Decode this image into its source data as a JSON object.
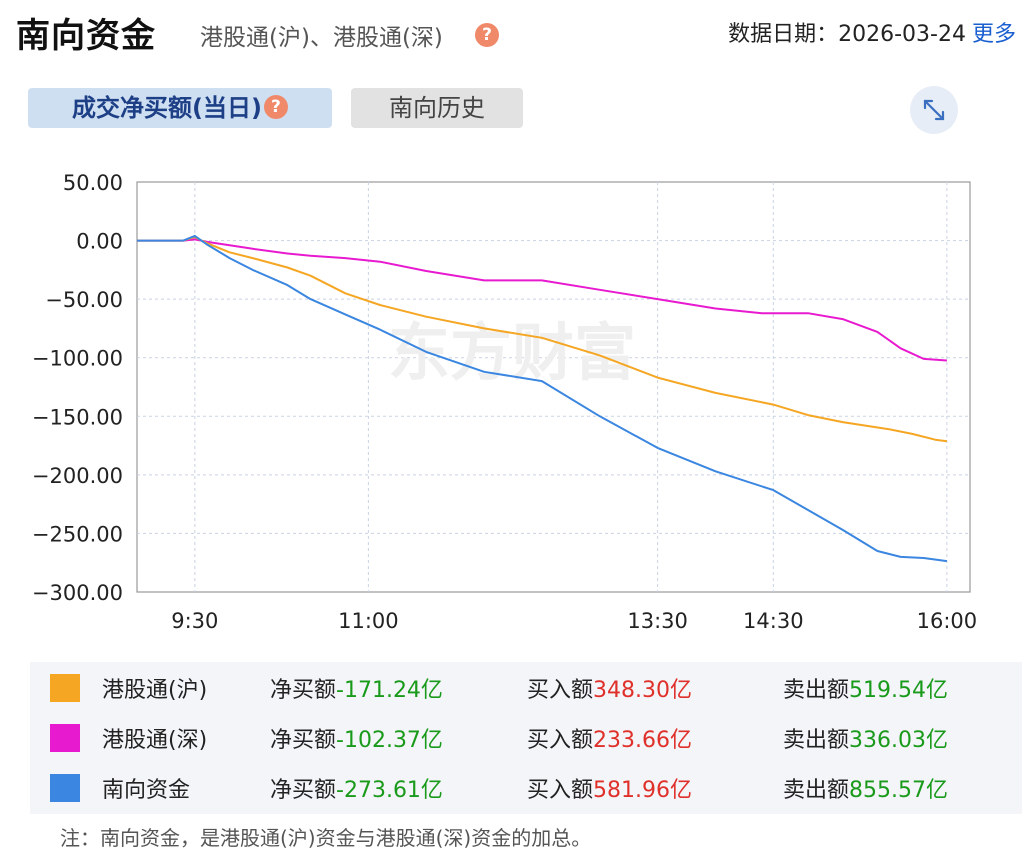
{
  "header": {
    "title": "南向资金",
    "subtitle": "港股通(沪)、港股通(深)",
    "help_glyph": "?",
    "date_label": "数据日期：",
    "date_value": "2026-03-24",
    "more_label": "更多"
  },
  "tabs": {
    "active": "成交净买额(当日)",
    "inactive": "南向历史"
  },
  "watermark": "东方财富",
  "legend": [
    {
      "name": "港股通(沪)",
      "color": "#f5a623",
      "net_label": "净买额",
      "net": "-171.24亿",
      "buy_label": "买入额",
      "buy": "348.30亿",
      "sell_label": "卖出额",
      "sell": "519.54亿"
    },
    {
      "name": "港股通(深)",
      "color": "#e81ad0",
      "net_label": "净买额",
      "net": "-102.37亿",
      "buy_label": "买入额",
      "buy": "233.66亿",
      "sell_label": "卖出额",
      "sell": "336.03亿"
    },
    {
      "name": "南向资金",
      "color": "#3a86e0",
      "net_label": "净买额",
      "net": "-273.61亿",
      "buy_label": "买入额",
      "buy": "581.96亿",
      "sell_label": "卖出额",
      "sell": "855.57亿"
    }
  ],
  "note": "注：南向资金，是港股通(沪)资金与港股通(深)资金的加总。",
  "chart_data": {
    "type": "line",
    "xlabel": "",
    "ylabel": "",
    "ylim": [
      -300,
      50
    ],
    "yticks": [
      "50.00",
      "0.00",
      "-50.00",
      "-100.00",
      "-150.00",
      "-200.00",
      "-250.00",
      "-300.00"
    ],
    "xticks": [
      "9:30",
      "11:00",
      "13:30",
      "14:30",
      "16:00"
    ],
    "x": [
      0,
      1.5,
      4,
      5,
      6.5
    ],
    "xlim": [
      -0.5,
      6.7
    ],
    "grid": true,
    "series": [
      {
        "name": "港股通(沪)",
        "color": "#f5a623",
        "x": [
          -0.5,
          -0.1,
          0,
          0.1,
          0.3,
          0.5,
          0.8,
          1.0,
          1.3,
          1.6,
          2.0,
          2.5,
          3.0,
          3.5,
          4.0,
          4.5,
          5.0,
          5.3,
          5.6,
          6.0,
          6.2,
          6.4,
          6.5
        ],
        "values": [
          0,
          0,
          3,
          -2,
          -10,
          -15,
          -23,
          -30,
          -45,
          -55,
          -65,
          -75,
          -83,
          -98,
          -117,
          -130,
          -140,
          -149,
          -155,
          -161,
          -165,
          -170,
          -171.24
        ]
      },
      {
        "name": "港股通(深)",
        "color": "#e81ad0",
        "x": [
          -0.5,
          -0.1,
          0,
          0.1,
          0.3,
          0.5,
          0.8,
          1.0,
          1.3,
          1.6,
          2.0,
          2.5,
          3.0,
          3.5,
          4.0,
          4.5,
          4.9,
          5.3,
          5.6,
          5.9,
          6.1,
          6.3,
          6.5
        ],
        "values": [
          0,
          0,
          1,
          -1,
          -4,
          -7,
          -11,
          -13,
          -15,
          -18,
          -26,
          -34,
          -34,
          -42,
          -50,
          -58,
          -62,
          -62,
          -67,
          -78,
          -92,
          -101,
          -102.37
        ]
      },
      {
        "name": "南向资金",
        "color": "#3a86e0",
        "x": [
          -0.5,
          -0.1,
          0,
          0.1,
          0.3,
          0.5,
          0.8,
          1.0,
          1.3,
          1.6,
          2.0,
          2.5,
          3.0,
          3.5,
          4.0,
          4.5,
          5.0,
          5.3,
          5.6,
          5.9,
          6.1,
          6.3,
          6.5
        ],
        "values": [
          0,
          0,
          4,
          -3,
          -15,
          -25,
          -38,
          -50,
          -63,
          -76,
          -95,
          -112,
          -120,
          -150,
          -177,
          -197,
          -213,
          -230,
          -247,
          -265,
          -270,
          -271,
          -273.61
        ]
      }
    ]
  }
}
